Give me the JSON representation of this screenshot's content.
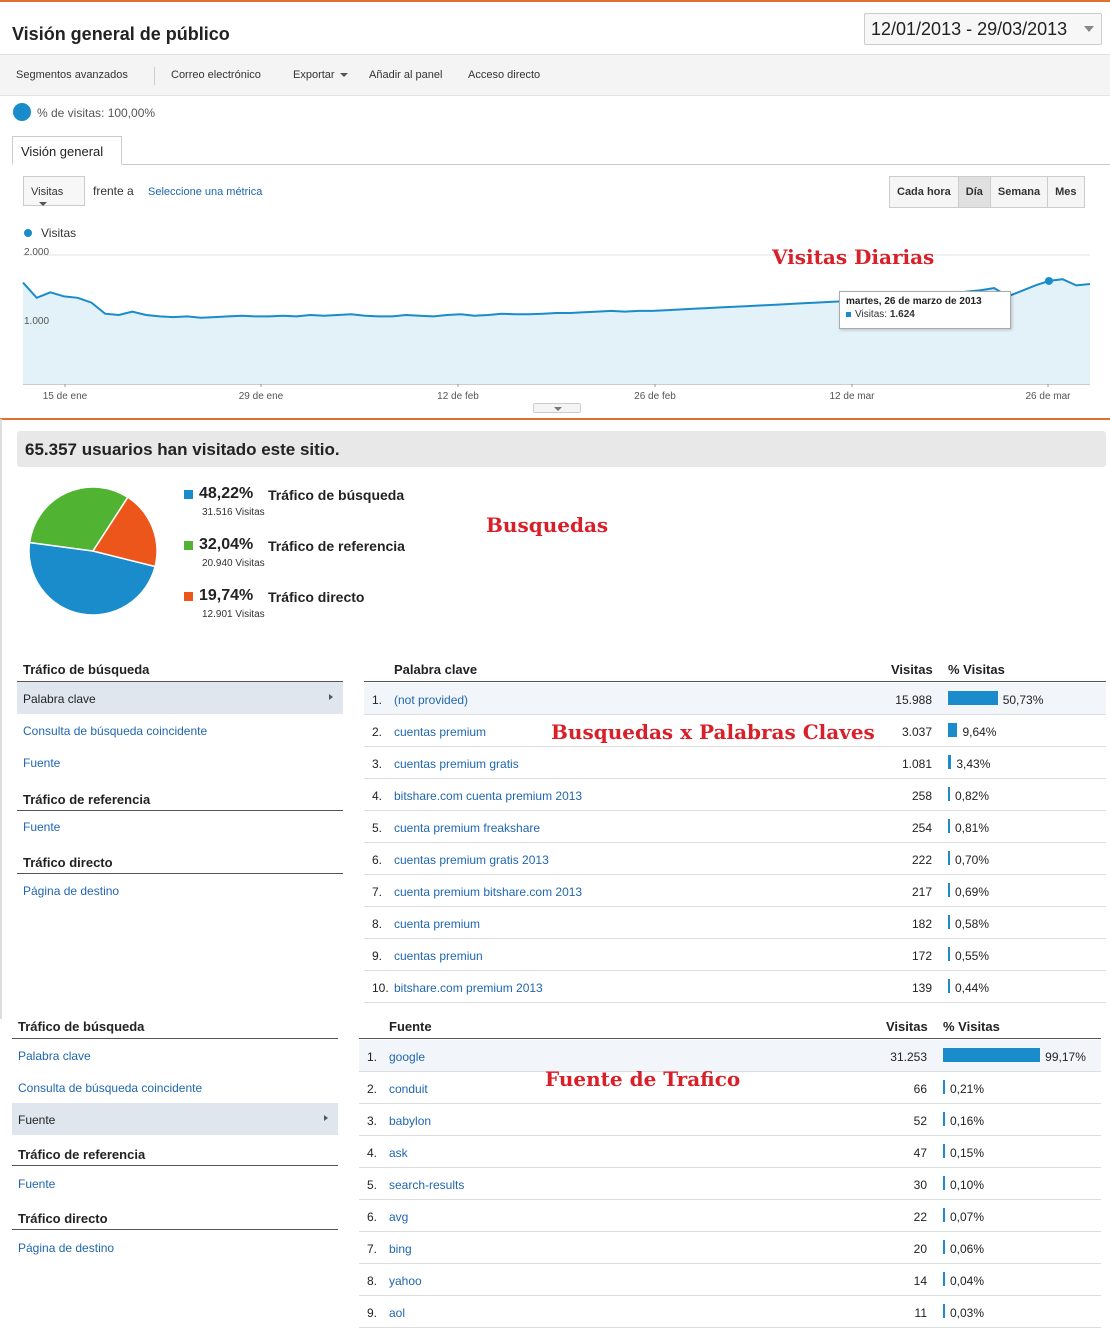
{
  "header": {
    "title": "Visión general de público",
    "date_range": "12/01/2013 - 29/03/2013"
  },
  "toolbar": {
    "advanced_segments": "Segmentos avanzados",
    "email": "Correo electrónico",
    "export": "Exportar",
    "add_to_panel": "Añadir al panel",
    "shortcut": "Acceso directo"
  },
  "segment": {
    "label": "% de visitas: 100,00%"
  },
  "tabs": {
    "overview": "Visión general"
  },
  "chart_controls": {
    "metric": "Visitas",
    "versus": "frente a",
    "select_metric": "Seleccione una métrica",
    "periods": [
      "Cada hora",
      "Día",
      "Semana",
      "Mes"
    ],
    "active_period": "Día"
  },
  "chart_data": {
    "type": "area",
    "series": [
      {
        "name": "Visitas",
        "values": [
          1600,
          1380,
          1460,
          1400,
          1380,
          1310,
          1150,
          1130,
          1180,
          1130,
          1110,
          1100,
          1110,
          1090,
          1100,
          1110,
          1120,
          1110,
          1110,
          1120,
          1110,
          1130,
          1120,
          1130,
          1140,
          1120,
          1110,
          1110,
          1130,
          1120,
          1110,
          1130,
          1140,
          1120,
          1130,
          1150,
          1140,
          1140,
          1150,
          1160,
          1160,
          1170,
          1180,
          1190,
          1180,
          1190,
          1190,
          1200,
          1210,
          1220,
          1230,
          1240,
          1250,
          1260,
          1270,
          1280,
          1290,
          1300,
          1310,
          1320,
          1330,
          1340,
          1350,
          1360,
          1370,
          1380,
          1420,
          1450,
          1440,
          1470,
          1490,
          1520,
          1400,
          1480,
          1560,
          1624,
          1650,
          1560,
          1580
        ],
        "color": "#1a8ccc"
      }
    ],
    "x_ticks": [
      "15 de ene",
      "29 de ene",
      "12 de feb",
      "26 de feb",
      "12 de mar",
      "26 de mar"
    ],
    "y_ticks": [
      "2.000",
      "1.000"
    ],
    "ylim": [
      0,
      2000
    ],
    "grid": true,
    "legend": "top-left"
  },
  "tooltip": {
    "date": "martes, 26 de marzo de 2013",
    "label": "Visitas:",
    "value": "1.624"
  },
  "annotations": {
    "daily": "Visitas Diarias",
    "searches": "Busquedas",
    "keywords": "Busquedas x Palabras Claves",
    "traffic_source": "Fuente de Trafico"
  },
  "summary": {
    "headline": "65.357 usuarios han visitado este sitio."
  },
  "traffic_pie": {
    "slices": [
      {
        "pct": "48,22%",
        "label": "Tráfico de búsqueda",
        "visits": "31.516 Visitas",
        "value": 48.22,
        "color": "#1a8ccc"
      },
      {
        "pct": "32,04%",
        "label": "Tráfico de referencia",
        "visits": "20.940 Visitas",
        "value": 32.04,
        "color": "#50b432"
      },
      {
        "pct": "19,74%",
        "label": "Tráfico directo",
        "visits": "12.901 Visitas",
        "value": 19.74,
        "color": "#ed561b"
      }
    ]
  },
  "nav1": {
    "search_head": "Tráfico de búsqueda",
    "items_search": [
      "Palabra clave",
      "Consulta de búsqueda coincidente",
      "Fuente"
    ],
    "referral_head": "Tráfico de referencia",
    "items_referral": [
      "Fuente"
    ],
    "direct_head": "Tráfico directo",
    "items_direct": [
      "Página de destino"
    ]
  },
  "keywords_table": {
    "col_name": "Palabra clave",
    "col_visits": "Visitas",
    "col_pct": "% Visitas",
    "rows": [
      {
        "n": "1.",
        "name": "(not provided)",
        "visits": "15.988",
        "pct": "50,73%",
        "share": 50.73
      },
      {
        "n": "2.",
        "name": "cuentas premium",
        "visits": "3.037",
        "pct": "9,64%",
        "share": 9.64
      },
      {
        "n": "3.",
        "name": "cuentas premium gratis",
        "visits": "1.081",
        "pct": "3,43%",
        "share": 3.43
      },
      {
        "n": "4.",
        "name": "bitshare.com cuenta premium 2013",
        "visits": "258",
        "pct": "0,82%",
        "share": 0.82
      },
      {
        "n": "5.",
        "name": "cuenta premium freakshare",
        "visits": "254",
        "pct": "0,81%",
        "share": 0.81
      },
      {
        "n": "6.",
        "name": "cuentas premium gratis 2013",
        "visits": "222",
        "pct": "0,70%",
        "share": 0.7
      },
      {
        "n": "7.",
        "name": "cuenta premium bitshare.com 2013",
        "visits": "217",
        "pct": "0,69%",
        "share": 0.69
      },
      {
        "n": "8.",
        "name": "cuenta premium",
        "visits": "182",
        "pct": "0,58%",
        "share": 0.58
      },
      {
        "n": "9.",
        "name": "cuentas premiun",
        "visits": "172",
        "pct": "0,55%",
        "share": 0.55
      },
      {
        "n": "10.",
        "name": "bitshare.com premium 2013",
        "visits": "139",
        "pct": "0,44%",
        "share": 0.44
      }
    ]
  },
  "nav2": {
    "search_head": "Tráfico de búsqueda",
    "items_search": [
      "Palabra clave",
      "Consulta de búsqueda coincidente",
      "Fuente"
    ],
    "referral_head": "Tráfico de referencia",
    "items_referral": [
      "Fuente"
    ],
    "direct_head": "Tráfico directo",
    "items_direct": [
      "Página de destino"
    ]
  },
  "sources_table": {
    "col_name": "Fuente",
    "col_visits": "Visitas",
    "col_pct": "% Visitas",
    "rows": [
      {
        "n": "1.",
        "name": "google",
        "visits": "31.253",
        "pct": "99,17%",
        "share": 99.17
      },
      {
        "n": "2.",
        "name": "conduit",
        "visits": "66",
        "pct": "0,21%",
        "share": 0.21
      },
      {
        "n": "3.",
        "name": "babylon",
        "visits": "52",
        "pct": "0,16%",
        "share": 0.16
      },
      {
        "n": "4.",
        "name": "ask",
        "visits": "47",
        "pct": "0,15%",
        "share": 0.15
      },
      {
        "n": "5.",
        "name": "search-results",
        "visits": "30",
        "pct": "0,10%",
        "share": 0.1
      },
      {
        "n": "6.",
        "name": "avg",
        "visits": "22",
        "pct": "0,07%",
        "share": 0.07
      },
      {
        "n": "7.",
        "name": "bing",
        "visits": "20",
        "pct": "0,06%",
        "share": 0.06
      },
      {
        "n": "8.",
        "name": "yahoo",
        "visits": "14",
        "pct": "0,04%",
        "share": 0.04
      },
      {
        "n": "9.",
        "name": "aol",
        "visits": "11",
        "pct": "0,03%",
        "share": 0.03
      }
    ]
  }
}
